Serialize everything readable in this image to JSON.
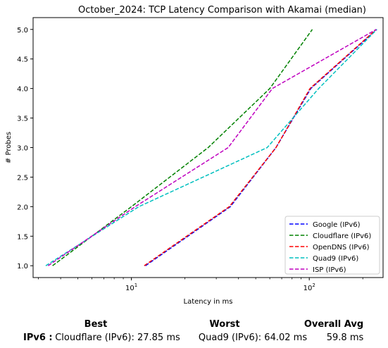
{
  "chart_data": {
    "type": "line",
    "title": "October_2024: TCP Latency Comparison with Akamai (median)",
    "xlabel": "Latency in ms",
    "ylabel": "# Probes",
    "xscale": "log",
    "xlim": [
      2.8,
      260
    ],
    "ylim": [
      0.8,
      5.2
    ],
    "xticks": [
      10,
      100
    ],
    "xtick_labels": [
      "10^1",
      "10^2"
    ],
    "yticks": [
      1.0,
      1.5,
      2.0,
      2.5,
      3.0,
      3.5,
      4.0,
      4.5,
      5.0
    ],
    "ytick_labels": [
      "1.0",
      "1.5",
      "2.0",
      "2.5",
      "3.0",
      "3.5",
      "4.0",
      "4.5",
      "5.0"
    ],
    "grid": false,
    "legend_position": "lower right",
    "series": [
      {
        "name": "Google (IPv6)",
        "color": "#0000ff",
        "linestyle": "dashed",
        "x": [
          12.0,
          36.0,
          65.0,
          102.0,
          240.0
        ],
        "y": [
          1,
          2,
          3,
          4,
          5
        ]
      },
      {
        "name": "Cloudflare (IPv6)",
        "color": "#008000",
        "linestyle": "dashed",
        "x": [
          3.6,
          10.0,
          27.0,
          60.0,
          104.0
        ],
        "y": [
          1,
          2,
          3,
          4,
          5
        ]
      },
      {
        "name": "OpenDNS (IPv6)",
        "color": "#ff0000",
        "linestyle": "dashed",
        "x": [
          11.8,
          35.5,
          65.0,
          101.0,
          238.0
        ],
        "y": [
          1,
          2,
          3,
          4,
          5
        ]
      },
      {
        "name": "Quad9 (IPv6)",
        "color": "#00bfbf",
        "linestyle": "dashed",
        "x": [
          3.3,
          11.0,
          58.0,
          113.0,
          240.0
        ],
        "y": [
          1,
          2,
          3,
          4,
          5
        ]
      },
      {
        "name": "ISP (IPv6)",
        "color": "#bf00bf",
        "linestyle": "dashed",
        "x": [
          3.4,
          10.5,
          35.0,
          62.0,
          238.0
        ],
        "y": [
          1,
          2,
          3,
          4,
          5
        ]
      }
    ]
  },
  "summary": {
    "best_header": "Best",
    "worst_header": "Worst",
    "avg_header": "Overall Avg",
    "row_label": "IPv6 :",
    "best_value": "Cloudflare (IPv6): 27.85 ms",
    "worst_value": "Quad9 (IPv6): 64.02 ms",
    "avg_value": "59.8 ms"
  }
}
